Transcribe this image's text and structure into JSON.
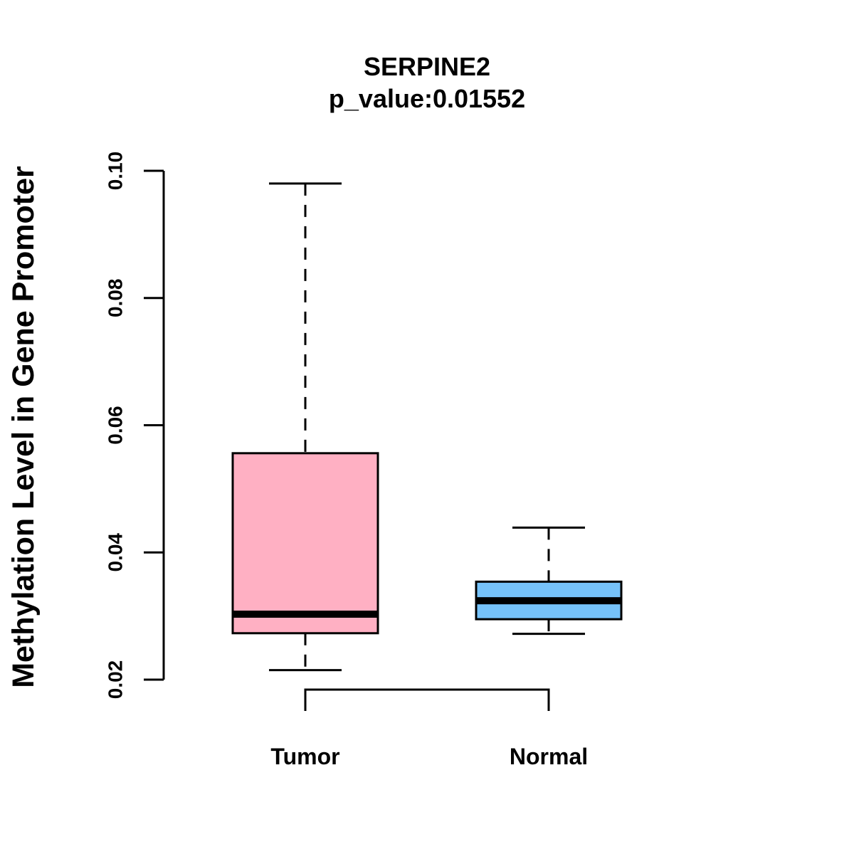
{
  "chart_data": {
    "type": "boxplot",
    "title": "SERPINE2",
    "subtitle": "p_value:0.01552",
    "xlabel": "",
    "ylabel": "Methylation Level in Gene Promoter",
    "ylim": [
      0.02,
      0.1
    ],
    "yticks": [
      0.02,
      0.04,
      0.06,
      0.08,
      0.1
    ],
    "ytick_labels": [
      "0.02",
      "0.04",
      "0.06",
      "0.08",
      "0.10"
    ],
    "categories": [
      "Tumor",
      "Normal"
    ],
    "series": [
      {
        "name": "Tumor",
        "color": "#FFB0C3",
        "whisker_low": 0.0215,
        "q1": 0.0273,
        "median": 0.0303,
        "q3": 0.0556,
        "whisker_high": 0.098
      },
      {
        "name": "Normal",
        "color": "#76C2F9",
        "whisker_low": 0.0272,
        "q1": 0.0295,
        "median": 0.0324,
        "q3": 0.0354,
        "whisker_high": 0.0439
      }
    ],
    "significance_bracket": {
      "between": [
        "Tumor",
        "Normal"
      ],
      "label": ""
    },
    "grid": false
  }
}
